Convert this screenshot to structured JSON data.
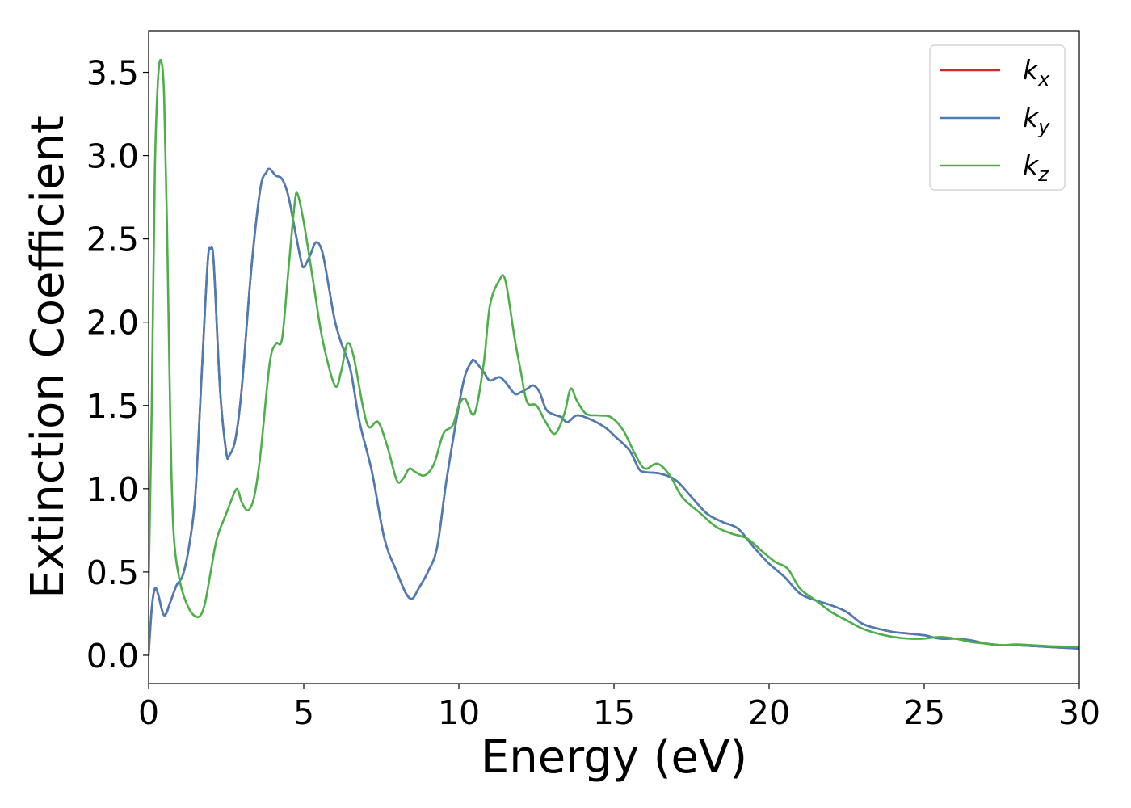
{
  "chart_data": {
    "type": "line",
    "title": "",
    "xlabel": "Energy (eV)",
    "ylabel": "Extinction Coefficient",
    "xlim": [
      0,
      30
    ],
    "ylim": [
      -0.17,
      3.75
    ],
    "x_ticks": [
      "0",
      "5",
      "10",
      "15",
      "20",
      "25",
      "30"
    ],
    "y_ticks": [
      "0.0",
      "0.5",
      "1.0",
      "1.5",
      "2.0",
      "2.5",
      "3.0",
      "3.5"
    ],
    "grid": false,
    "legend_position": "top-right",
    "series": [
      {
        "name": "k",
        "subscript": "x",
        "color": "#d62728",
        "points": [
          [
            0,
            0
          ],
          [
            0.1,
            0.28
          ],
          [
            0.2,
            0.4
          ],
          [
            0.3,
            0.37
          ],
          [
            0.5,
            0.24
          ],
          [
            0.7,
            0.32
          ],
          [
            0.9,
            0.42
          ],
          [
            1.1,
            0.48
          ],
          [
            1.3,
            0.65
          ],
          [
            1.5,
            0.95
          ],
          [
            1.7,
            1.65
          ],
          [
            1.9,
            2.35
          ],
          [
            2.0,
            2.44
          ],
          [
            2.1,
            2.35
          ],
          [
            2.3,
            1.6
          ],
          [
            2.5,
            1.22
          ],
          [
            2.6,
            1.2
          ],
          [
            2.8,
            1.3
          ],
          [
            3.0,
            1.6
          ],
          [
            3.3,
            2.3
          ],
          [
            3.6,
            2.8
          ],
          [
            3.8,
            2.9
          ],
          [
            3.9,
            2.92
          ],
          [
            4.1,
            2.88
          ],
          [
            4.3,
            2.86
          ],
          [
            4.5,
            2.76
          ],
          [
            4.7,
            2.57
          ],
          [
            4.9,
            2.38
          ],
          [
            5.0,
            2.33
          ],
          [
            5.2,
            2.4
          ],
          [
            5.4,
            2.48
          ],
          [
            5.6,
            2.42
          ],
          [
            5.8,
            2.22
          ],
          [
            6.0,
            2.01
          ],
          [
            6.2,
            1.88
          ],
          [
            6.5,
            1.72
          ],
          [
            6.8,
            1.4
          ],
          [
            7.2,
            1.1
          ],
          [
            7.6,
            0.7
          ],
          [
            8.0,
            0.5
          ],
          [
            8.3,
            0.37
          ],
          [
            8.5,
            0.34
          ],
          [
            8.7,
            0.4
          ],
          [
            9.0,
            0.5
          ],
          [
            9.3,
            0.65
          ],
          [
            9.6,
            1.05
          ],
          [
            10.0,
            1.5
          ],
          [
            10.2,
            1.68
          ],
          [
            10.4,
            1.76
          ],
          [
            10.5,
            1.77
          ],
          [
            10.8,
            1.7
          ],
          [
            11.0,
            1.65
          ],
          [
            11.3,
            1.67
          ],
          [
            11.5,
            1.64
          ],
          [
            11.8,
            1.57
          ],
          [
            12.0,
            1.58
          ],
          [
            12.2,
            1.6
          ],
          [
            12.4,
            1.62
          ],
          [
            12.6,
            1.58
          ],
          [
            12.8,
            1.48
          ],
          [
            13.0,
            1.45
          ],
          [
            13.3,
            1.43
          ],
          [
            13.5,
            1.4
          ],
          [
            13.8,
            1.44
          ],
          [
            14.2,
            1.42
          ],
          [
            14.7,
            1.37
          ],
          [
            15.0,
            1.32
          ],
          [
            15.5,
            1.23
          ],
          [
            15.8,
            1.12
          ],
          [
            16.0,
            1.1
          ],
          [
            16.5,
            1.09
          ],
          [
            17.0,
            1.05
          ],
          [
            17.5,
            0.95
          ],
          [
            18.0,
            0.85
          ],
          [
            18.5,
            0.8
          ],
          [
            19.0,
            0.76
          ],
          [
            19.5,
            0.65
          ],
          [
            20.0,
            0.55
          ],
          [
            20.5,
            0.47
          ],
          [
            21.0,
            0.37
          ],
          [
            21.5,
            0.33
          ],
          [
            22.0,
            0.3
          ],
          [
            22.5,
            0.26
          ],
          [
            23.0,
            0.19
          ],
          [
            23.5,
            0.16
          ],
          [
            24.0,
            0.14
          ],
          [
            24.5,
            0.13
          ],
          [
            25.0,
            0.12
          ],
          [
            25.5,
            0.1
          ],
          [
            26.0,
            0.1
          ],
          [
            26.5,
            0.09
          ],
          [
            27.0,
            0.07
          ],
          [
            27.5,
            0.06
          ],
          [
            28.0,
            0.06
          ],
          [
            29.0,
            0.05
          ],
          [
            30.0,
            0.04
          ]
        ]
      },
      {
        "name": "k",
        "subscript": "y",
        "color": "#4a7db5",
        "points": [
          [
            0,
            0
          ],
          [
            0.1,
            0.28
          ],
          [
            0.2,
            0.4
          ],
          [
            0.3,
            0.37
          ],
          [
            0.5,
            0.24
          ],
          [
            0.7,
            0.32
          ],
          [
            0.9,
            0.42
          ],
          [
            1.1,
            0.48
          ],
          [
            1.3,
            0.65
          ],
          [
            1.5,
            0.95
          ],
          [
            1.7,
            1.65
          ],
          [
            1.9,
            2.35
          ],
          [
            2.0,
            2.44
          ],
          [
            2.1,
            2.35
          ],
          [
            2.3,
            1.6
          ],
          [
            2.5,
            1.22
          ],
          [
            2.6,
            1.2
          ],
          [
            2.8,
            1.3
          ],
          [
            3.0,
            1.6
          ],
          [
            3.3,
            2.3
          ],
          [
            3.6,
            2.8
          ],
          [
            3.8,
            2.9
          ],
          [
            3.9,
            2.92
          ],
          [
            4.1,
            2.88
          ],
          [
            4.3,
            2.86
          ],
          [
            4.5,
            2.76
          ],
          [
            4.7,
            2.57
          ],
          [
            4.9,
            2.38
          ],
          [
            5.0,
            2.33
          ],
          [
            5.2,
            2.4
          ],
          [
            5.4,
            2.48
          ],
          [
            5.6,
            2.42
          ],
          [
            5.8,
            2.22
          ],
          [
            6.0,
            2.01
          ],
          [
            6.2,
            1.88
          ],
          [
            6.5,
            1.72
          ],
          [
            6.8,
            1.4
          ],
          [
            7.2,
            1.1
          ],
          [
            7.6,
            0.7
          ],
          [
            8.0,
            0.5
          ],
          [
            8.3,
            0.37
          ],
          [
            8.5,
            0.34
          ],
          [
            8.7,
            0.4
          ],
          [
            9.0,
            0.5
          ],
          [
            9.3,
            0.65
          ],
          [
            9.6,
            1.05
          ],
          [
            10.0,
            1.5
          ],
          [
            10.2,
            1.68
          ],
          [
            10.4,
            1.76
          ],
          [
            10.5,
            1.77
          ],
          [
            10.8,
            1.7
          ],
          [
            11.0,
            1.65
          ],
          [
            11.3,
            1.67
          ],
          [
            11.5,
            1.64
          ],
          [
            11.8,
            1.57
          ],
          [
            12.0,
            1.58
          ],
          [
            12.2,
            1.6
          ],
          [
            12.4,
            1.62
          ],
          [
            12.6,
            1.58
          ],
          [
            12.8,
            1.48
          ],
          [
            13.0,
            1.45
          ],
          [
            13.3,
            1.43
          ],
          [
            13.5,
            1.4
          ],
          [
            13.8,
            1.44
          ],
          [
            14.2,
            1.42
          ],
          [
            14.7,
            1.37
          ],
          [
            15.0,
            1.32
          ],
          [
            15.5,
            1.23
          ],
          [
            15.8,
            1.12
          ],
          [
            16.0,
            1.1
          ],
          [
            16.5,
            1.09
          ],
          [
            17.0,
            1.05
          ],
          [
            17.5,
            0.95
          ],
          [
            18.0,
            0.85
          ],
          [
            18.5,
            0.8
          ],
          [
            19.0,
            0.76
          ],
          [
            19.5,
            0.65
          ],
          [
            20.0,
            0.55
          ],
          [
            20.5,
            0.47
          ],
          [
            21.0,
            0.37
          ],
          [
            21.5,
            0.33
          ],
          [
            22.0,
            0.3
          ],
          [
            22.5,
            0.26
          ],
          [
            23.0,
            0.19
          ],
          [
            23.5,
            0.16
          ],
          [
            24.0,
            0.14
          ],
          [
            24.5,
            0.13
          ],
          [
            25.0,
            0.12
          ],
          [
            25.5,
            0.1
          ],
          [
            26.0,
            0.1
          ],
          [
            26.5,
            0.09
          ],
          [
            27.0,
            0.07
          ],
          [
            27.5,
            0.06
          ],
          [
            28.0,
            0.06
          ],
          [
            29.0,
            0.05
          ],
          [
            30.0,
            0.04
          ]
        ]
      },
      {
        "name": "k",
        "subscript": "z",
        "color": "#4daf4a",
        "points": [
          [
            0,
            0.4
          ],
          [
            0.1,
            1.5
          ],
          [
            0.2,
            2.9
          ],
          [
            0.3,
            3.45
          ],
          [
            0.4,
            3.57
          ],
          [
            0.5,
            3.35
          ],
          [
            0.6,
            2.5
          ],
          [
            0.7,
            1.4
          ],
          [
            0.8,
            0.75
          ],
          [
            1.0,
            0.45
          ],
          [
            1.3,
            0.28
          ],
          [
            1.6,
            0.23
          ],
          [
            1.8,
            0.3
          ],
          [
            2.0,
            0.5
          ],
          [
            2.2,
            0.7
          ],
          [
            2.5,
            0.85
          ],
          [
            2.8,
            0.99
          ],
          [
            2.9,
            0.98
          ],
          [
            3.0,
            0.92
          ],
          [
            3.2,
            0.87
          ],
          [
            3.4,
            0.95
          ],
          [
            3.6,
            1.2
          ],
          [
            3.9,
            1.75
          ],
          [
            4.1,
            1.87
          ],
          [
            4.3,
            1.9
          ],
          [
            4.5,
            2.3
          ],
          [
            4.7,
            2.7
          ],
          [
            4.8,
            2.77
          ],
          [
            5.0,
            2.6
          ],
          [
            5.3,
            2.25
          ],
          [
            5.6,
            1.9
          ],
          [
            6.0,
            1.62
          ],
          [
            6.2,
            1.7
          ],
          [
            6.4,
            1.87
          ],
          [
            6.6,
            1.8
          ],
          [
            6.9,
            1.5
          ],
          [
            7.1,
            1.37
          ],
          [
            7.4,
            1.4
          ],
          [
            7.7,
            1.25
          ],
          [
            8.0,
            1.05
          ],
          [
            8.2,
            1.06
          ],
          [
            8.4,
            1.12
          ],
          [
            8.6,
            1.1
          ],
          [
            8.9,
            1.08
          ],
          [
            9.2,
            1.15
          ],
          [
            9.5,
            1.33
          ],
          [
            9.8,
            1.38
          ],
          [
            10.0,
            1.5
          ],
          [
            10.2,
            1.54
          ],
          [
            10.5,
            1.45
          ],
          [
            10.8,
            1.75
          ],
          [
            11.0,
            2.1
          ],
          [
            11.3,
            2.25
          ],
          [
            11.5,
            2.25
          ],
          [
            11.8,
            1.9
          ],
          [
            12.0,
            1.7
          ],
          [
            12.2,
            1.52
          ],
          [
            12.5,
            1.5
          ],
          [
            12.8,
            1.4
          ],
          [
            13.1,
            1.33
          ],
          [
            13.4,
            1.45
          ],
          [
            13.6,
            1.6
          ],
          [
            13.8,
            1.53
          ],
          [
            14.1,
            1.45
          ],
          [
            14.5,
            1.44
          ],
          [
            14.9,
            1.43
          ],
          [
            15.3,
            1.35
          ],
          [
            15.7,
            1.2
          ],
          [
            16.0,
            1.12
          ],
          [
            16.4,
            1.15
          ],
          [
            16.8,
            1.08
          ],
          [
            17.2,
            0.95
          ],
          [
            17.8,
            0.85
          ],
          [
            18.3,
            0.77
          ],
          [
            18.8,
            0.73
          ],
          [
            19.3,
            0.7
          ],
          [
            19.8,
            0.62
          ],
          [
            20.2,
            0.56
          ],
          [
            20.6,
            0.52
          ],
          [
            21.0,
            0.4
          ],
          [
            21.5,
            0.33
          ],
          [
            22.0,
            0.26
          ],
          [
            22.5,
            0.21
          ],
          [
            23.0,
            0.16
          ],
          [
            23.5,
            0.13
          ],
          [
            24.0,
            0.11
          ],
          [
            24.5,
            0.1
          ],
          [
            25.0,
            0.1
          ],
          [
            25.5,
            0.11
          ],
          [
            26.0,
            0.1
          ],
          [
            26.5,
            0.08
          ],
          [
            27.0,
            0.07
          ],
          [
            27.5,
            0.06
          ],
          [
            28.0,
            0.065
          ],
          [
            29.0,
            0.055
          ],
          [
            30.0,
            0.05
          ]
        ]
      }
    ]
  }
}
